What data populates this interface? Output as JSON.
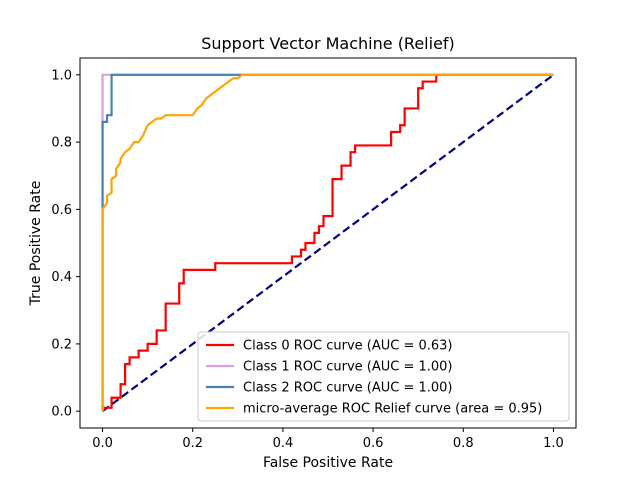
{
  "chart_data": {
    "type": "line",
    "title": "Support Vector Machine (Relief)",
    "xlabel": "False Positive Rate",
    "ylabel": "True Positive Rate",
    "xlim": [
      -0.05,
      1.05
    ],
    "ylim": [
      -0.05,
      1.05
    ],
    "xticks": [
      "0.0",
      "0.2",
      "0.4",
      "0.6",
      "0.8",
      "1.0"
    ],
    "yticks": [
      "0.0",
      "0.2",
      "0.4",
      "0.6",
      "0.8",
      "1.0"
    ],
    "grid": false,
    "legend_position": "lower-right",
    "series": [
      {
        "name": "Class 0 ROC curve (AUC = 0.63)",
        "color": "#ff0000",
        "x": [
          0.0,
          0.0,
          0.02,
          0.02,
          0.04,
          0.04,
          0.05,
          0.05,
          0.06,
          0.06,
          0.08,
          0.08,
          0.1,
          0.1,
          0.12,
          0.12,
          0.14,
          0.14,
          0.17,
          0.17,
          0.18,
          0.18,
          0.25,
          0.25,
          0.42,
          0.42,
          0.44,
          0.44,
          0.45,
          0.45,
          0.47,
          0.47,
          0.48,
          0.48,
          0.49,
          0.49,
          0.51,
          0.51,
          0.53,
          0.53,
          0.55,
          0.55,
          0.56,
          0.56,
          0.64,
          0.64,
          0.66,
          0.66,
          0.67,
          0.67,
          0.7,
          0.7,
          0.71,
          0.71,
          0.74,
          0.74,
          0.8,
          0.8,
          1.0
        ],
        "y": [
          0.0,
          0.01,
          0.01,
          0.04,
          0.04,
          0.08,
          0.08,
          0.14,
          0.14,
          0.16,
          0.16,
          0.18,
          0.18,
          0.2,
          0.2,
          0.24,
          0.24,
          0.32,
          0.32,
          0.38,
          0.38,
          0.42,
          0.42,
          0.44,
          0.44,
          0.46,
          0.46,
          0.48,
          0.48,
          0.5,
          0.5,
          0.53,
          0.53,
          0.55,
          0.55,
          0.58,
          0.58,
          0.69,
          0.69,
          0.73,
          0.73,
          0.77,
          0.77,
          0.79,
          0.79,
          0.83,
          0.83,
          0.85,
          0.85,
          0.9,
          0.9,
          0.96,
          0.96,
          0.98,
          0.98,
          1.0,
          1.0,
          1.0,
          1.0
        ]
      },
      {
        "name": "Class 1 ROC curve (AUC = 1.00)",
        "color": "#dda0dd",
        "x": [
          0.0,
          0.0,
          0.0,
          0.02,
          1.0
        ],
        "y": [
          0.0,
          0.86,
          1.0,
          1.0,
          1.0
        ]
      },
      {
        "name": "Class 2 ROC curve (AUC = 1.00)",
        "color": "#4682b4",
        "x": [
          0.0,
          0.0,
          0.01,
          0.01,
          0.02,
          0.02,
          1.0
        ],
        "y": [
          0.0,
          0.86,
          0.86,
          0.88,
          0.88,
          1.0,
          1.0
        ]
      },
      {
        "name": "micro-average ROC Relief curve (area = 0.95)",
        "color": "#ffa500",
        "x": [
          0.0,
          0.0,
          0.0,
          0.01,
          0.01,
          0.02,
          0.02,
          0.03,
          0.03,
          0.04,
          0.04,
          0.05,
          0.06,
          0.07,
          0.08,
          0.09,
          0.1,
          0.11,
          0.12,
          0.13,
          0.14,
          0.16,
          0.17,
          0.2,
          0.21,
          0.22,
          0.23,
          0.24,
          0.25,
          0.26,
          0.27,
          0.28,
          0.29,
          0.3,
          0.31,
          0.33,
          0.35,
          0.4,
          1.0
        ],
        "y": [
          0.0,
          0.43,
          0.6,
          0.62,
          0.64,
          0.65,
          0.69,
          0.7,
          0.72,
          0.74,
          0.75,
          0.77,
          0.78,
          0.8,
          0.8,
          0.82,
          0.85,
          0.86,
          0.87,
          0.87,
          0.88,
          0.88,
          0.88,
          0.88,
          0.9,
          0.91,
          0.93,
          0.94,
          0.95,
          0.96,
          0.97,
          0.98,
          0.99,
          0.99,
          1.0,
          1.0,
          1.0,
          1.0,
          1.0
        ]
      }
    ],
    "chance_line": {
      "color": "#000080",
      "x": [
        0.0,
        1.0
      ],
      "y": [
        0.0,
        1.0
      ]
    }
  }
}
